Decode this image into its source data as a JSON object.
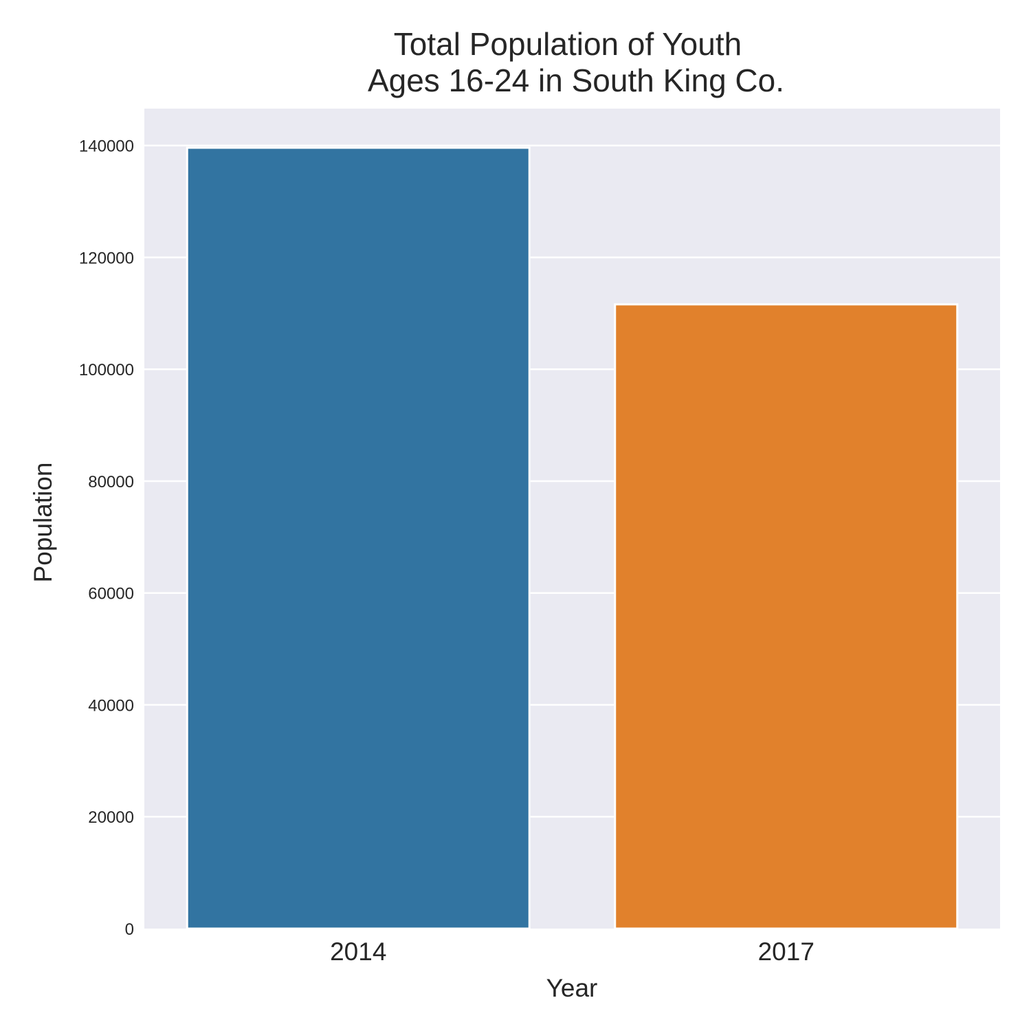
{
  "chart_data": {
    "type": "bar",
    "title": [
      "Total Population of Youth",
      "Ages 16-24 in South King Co."
    ],
    "xlabel": "Year",
    "ylabel": "Population",
    "categories": [
      "2014",
      "2017"
    ],
    "values": [
      139600,
      111600
    ],
    "bar_colors": [
      "#3274a1",
      "#e1812c"
    ],
    "yticks": [
      0,
      20000,
      40000,
      60000,
      80000,
      100000,
      120000,
      140000
    ],
    "ylim": [
      0,
      146600
    ],
    "grid": true,
    "legend": "none",
    "background_color": "#eaeaf2",
    "grid_color": "#ffffff"
  }
}
